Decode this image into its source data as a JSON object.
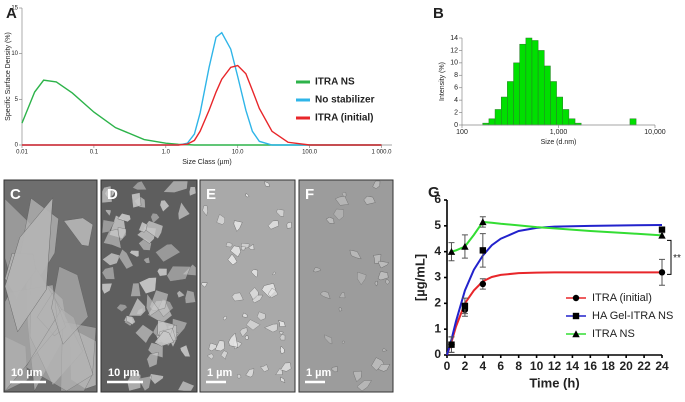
{
  "chart_data": [
    {
      "type": "line",
      "panel_label": "A",
      "xlabel": "Size Class (µm)",
      "ylabel": "Specific Surface Density (%)",
      "xscale": "log",
      "x": [
        0.01,
        0.015,
        0.02,
        0.03,
        0.05,
        0.1,
        0.2,
        0.5,
        1,
        1.5,
        2,
        2.5,
        3,
        4,
        5,
        6,
        8,
        10,
        13,
        16,
        20,
        30,
        50,
        100,
        1000
      ],
      "xlim": [
        0.01,
        1400
      ],
      "xticks": [
        0.01,
        0.1,
        {
          "value": 1,
          "label": "1.0"
        },
        {
          "value": 10,
          "label": "10.0"
        },
        {
          "value": 100,
          "label": "100.0"
        },
        {
          "value": 1000,
          "label": "1 000.0"
        }
      ],
      "ylim": [
        0,
        15
      ],
      "yticks": [
        0,
        5,
        10,
        15
      ],
      "legend": "right",
      "series": [
        {
          "name": "ITRA NS",
          "color": "#2db34a",
          "values": [
            2.4,
            5.8,
            7.1,
            6.9,
            5.7,
            3.6,
            1.9,
            0.6,
            0.2,
            0.08,
            0.04,
            0,
            0,
            0,
            0,
            0,
            0,
            0,
            0,
            0,
            0,
            0,
            0,
            0,
            0
          ]
        },
        {
          "name": "No stabilizer",
          "color": "#2fb5e8",
          "values": [
            0,
            0,
            0,
            0,
            0,
            0,
            0,
            0,
            0,
            0,
            0.2,
            1.2,
            3.5,
            8.5,
            11.8,
            12.3,
            10.5,
            7.5,
            3.8,
            1.5,
            0.4,
            0,
            0,
            0,
            0
          ]
        },
        {
          "name": "ITRA (initial)",
          "color": "#e8262a",
          "values": [
            0,
            0,
            0,
            0,
            0,
            0,
            0,
            0,
            0,
            0,
            0.1,
            0.5,
            1.5,
            3.8,
            5.8,
            7.2,
            8.5,
            8.7,
            7.8,
            6.0,
            4.0,
            1.5,
            0.3,
            0,
            0
          ]
        }
      ]
    },
    {
      "type": "histogram",
      "panel_label": "B",
      "xlabel": "Size (d.nm)",
      "ylabel": "Intensity (%)",
      "xscale": "log",
      "color": "#00e000",
      "bins": [
        164,
        190,
        220,
        255,
        295,
        342,
        396,
        459,
        531,
        615,
        712,
        825,
        955,
        1106,
        1281,
        1484,
        1718,
        5500,
        6370
      ],
      "values": [
        0.3,
        1,
        2.5,
        4.5,
        7,
        10,
        13,
        14,
        13.6,
        12,
        9.5,
        7,
        4.5,
        2.5,
        1,
        0.3,
        0,
        1
      ],
      "xlim": [
        100,
        10000
      ],
      "xticks": [
        100,
        {
          "value": 1000,
          "label": "1,000"
        },
        {
          "value": 10000,
          "label": "10,000"
        }
      ],
      "ylim": [
        0,
        14
      ],
      "yticks": [
        0,
        2,
        4,
        6,
        8,
        10,
        12,
        14
      ]
    },
    {
      "type": "line",
      "panel_label": "G",
      "xlabel": "Time (h)",
      "ylabel": "[µg/mL]",
      "x": [
        0.5,
        2,
        4,
        24
      ],
      "fit_x": [
        0,
        0.5,
        1,
        2,
        3,
        4,
        5,
        6,
        8,
        10,
        12,
        16,
        20,
        24
      ],
      "xlim": [
        0,
        24
      ],
      "xticks": [
        0,
        2,
        4,
        6,
        8,
        10,
        12,
        14,
        16,
        18,
        20,
        22,
        24
      ],
      "ylim": [
        0,
        6
      ],
      "yticks": [
        0,
        1,
        2,
        3,
        4,
        5,
        6
      ],
      "legend": "lower right",
      "annotation": "**",
      "series": [
        {
          "name": "ITRA (initial)",
          "color": "#e8262a",
          "marker": "circle",
          "values": [
            0.4,
            1.75,
            2.75,
            3.2
          ],
          "errors": [
            0.3,
            0.25,
            0.2,
            0.5
          ],
          "fit_values": [
            0,
            0.5,
            1.1,
            2.0,
            2.5,
            2.85,
            3.02,
            3.1,
            3.17,
            3.19,
            3.2,
            3.2,
            3.2,
            3.2
          ]
        },
        {
          "name": "HA Gel-ITRA NS",
          "color": "#2222cc",
          "marker": "square",
          "values": [
            0.4,
            1.9,
            4.05,
            4.85
          ],
          "errors": [
            0.3,
            0.3,
            0.65,
            0.1
          ],
          "fit_values": [
            0,
            0.6,
            1.3,
            2.5,
            3.3,
            3.85,
            4.25,
            4.5,
            4.8,
            4.92,
            4.97,
            5.0,
            5.02,
            5.03
          ]
        },
        {
          "name": "ITRA NS",
          "color": "#33dd33",
          "marker": "triangle",
          "values": [
            4.0,
            4.2,
            5.15,
            4.63
          ],
          "errors": [
            0.35,
            0.45,
            0.2,
            0.1
          ],
          "fit_values": [
            null,
            4.0,
            4.05,
            4.2,
            4.65,
            5.15,
            5.12,
            5.08,
            5.02,
            4.95,
            4.9,
            4.8,
            4.72,
            4.63
          ]
        }
      ]
    }
  ],
  "images": [
    {
      "label": "C",
      "scale_bar": "10 µm"
    },
    {
      "label": "D",
      "scale_bar": "10 µm"
    },
    {
      "label": "E",
      "scale_bar": "1 µm"
    },
    {
      "label": "F",
      "scale_bar": "1 µm"
    }
  ]
}
